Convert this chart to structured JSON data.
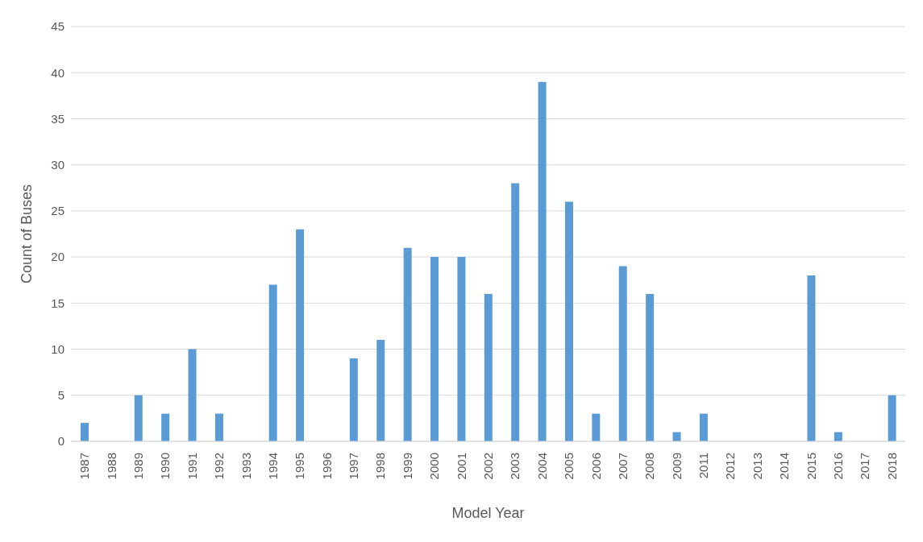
{
  "chart_data": {
    "type": "bar",
    "xlabel": "Model Year",
    "ylabel": "Count of Buses",
    "categories": [
      "1987",
      "1988",
      "1989",
      "1990",
      "1991",
      "1992",
      "1993",
      "1994",
      "1995",
      "1996",
      "1997",
      "1998",
      "1999",
      "2000",
      "2001",
      "2002",
      "2003",
      "2004",
      "2005",
      "2006",
      "2007",
      "2008",
      "2009",
      "2011",
      "2012",
      "2013",
      "2014",
      "2015",
      "2016",
      "2017",
      "2018"
    ],
    "values": [
      2,
      0,
      5,
      3,
      10,
      3,
      0,
      17,
      23,
      0,
      9,
      11,
      21,
      20,
      20,
      16,
      28,
      39,
      26,
      3,
      19,
      16,
      1,
      3,
      0,
      0,
      0,
      18,
      1,
      0,
      5
    ],
    "color": "#5b9bd5",
    "ylim": [
      0,
      45
    ],
    "yticks": [
      0,
      5,
      10,
      15,
      20,
      25,
      30,
      35,
      40,
      45
    ],
    "grid": "y"
  }
}
